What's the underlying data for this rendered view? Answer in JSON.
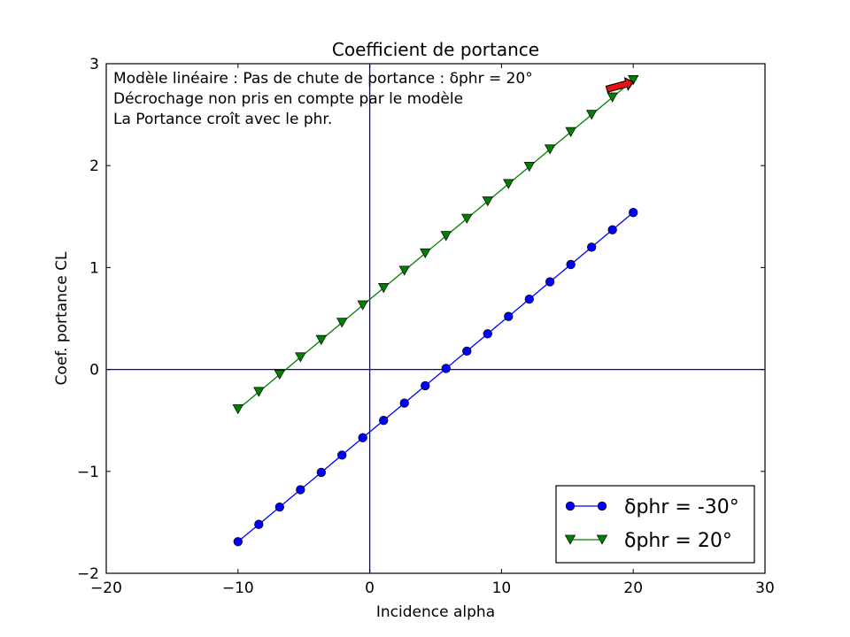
{
  "chart_data": {
    "type": "line",
    "title": "Coefficient de portance",
    "xlabel": "Incidence alpha",
    "ylabel": "Coef. portance CL",
    "xlim": [
      -20,
      30
    ],
    "ylim": [
      -2,
      3
    ],
    "xticks": [
      -20,
      -10,
      0,
      10,
      20,
      30
    ],
    "yticks": [
      -2,
      -1,
      0,
      1,
      2,
      3
    ],
    "xtick_labels": [
      "−20",
      "−10",
      "0",
      "10",
      "20",
      "30"
    ],
    "ytick_labels": [
      "−2",
      "−1",
      "0",
      "1",
      "2",
      "3"
    ],
    "grid": false,
    "legend_position": "lower-right",
    "reference_lines": {
      "horizontal": 0,
      "vertical": 0,
      "color": "#0000cc"
    },
    "annotation_lines": [
      "Modèle linéaire : Pas de chute de portance : δphr = 20°",
      "Décrochage non pris en compte par le modèle",
      "La Portance croît avec le phr."
    ],
    "arrow": {
      "color": "#ee1111",
      "from": [
        18,
        2.75
      ],
      "to": [
        20,
        2.82
      ]
    },
    "x": [
      -10,
      -8.42,
      -6.84,
      -5.26,
      -3.68,
      -2.11,
      -0.53,
      1.05,
      2.63,
      4.21,
      5.79,
      7.37,
      8.95,
      10.53,
      12.11,
      13.68,
      15.26,
      16.84,
      18.42,
      20
    ],
    "series": [
      {
        "name": "δphr = -30°",
        "color": "#0000ff",
        "marker": "circle",
        "values": [
          -1.69,
          -1.52,
          -1.35,
          -1.18,
          -1.01,
          -0.84,
          -0.67,
          -0.5,
          -0.33,
          -0.16,
          0.01,
          0.18,
          0.35,
          0.52,
          0.69,
          0.86,
          1.03,
          1.2,
          1.37,
          1.54
        ]
      },
      {
        "name": "δphr = 20°",
        "color": "#008000",
        "marker": "triangle-down",
        "values": [
          -0.39,
          -0.22,
          -0.05,
          0.12,
          0.29,
          0.46,
          0.63,
          0.8,
          0.97,
          1.14,
          1.31,
          1.48,
          1.65,
          1.82,
          1.99,
          2.16,
          2.33,
          2.5,
          2.67,
          2.84
        ]
      }
    ]
  }
}
